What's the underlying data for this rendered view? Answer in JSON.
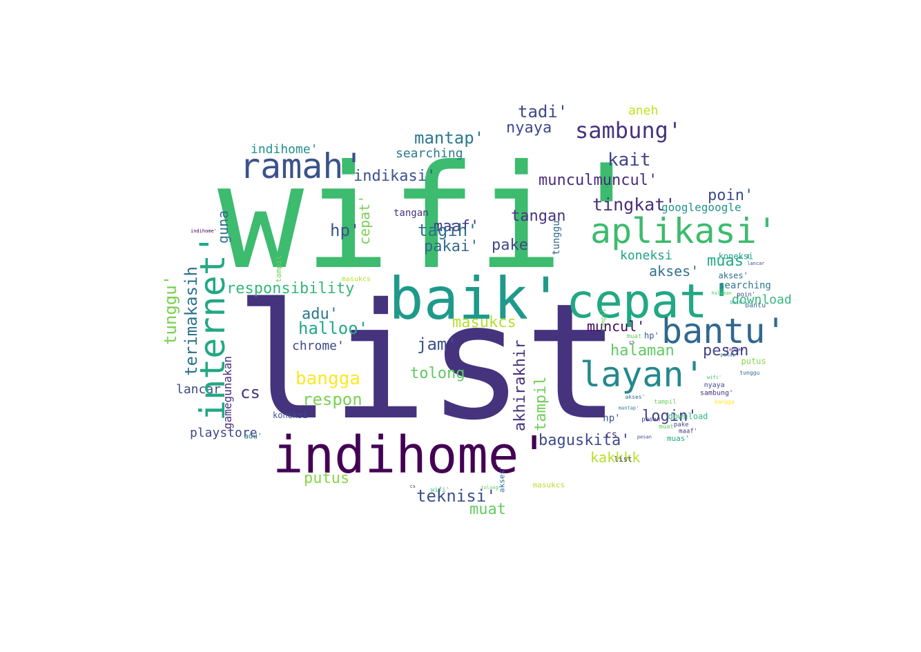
{
  "words": [
    {
      "text": "wifi'",
      "color": "#3dbb6e"
    },
    {
      "text": "list",
      "color": "#46337e"
    },
    {
      "text": "indihome'",
      "color": "#440154"
    },
    {
      "text": "baik'",
      "color": "#1f9a8a"
    },
    {
      "text": "cepat'",
      "color": "#22a884"
    },
    {
      "text": "aplikasi'",
      "color": "#3dbb6e"
    },
    {
      "text": "bantu'",
      "color": "#31688e"
    },
    {
      "text": "layan'",
      "color": "#23898e"
    },
    {
      "text": "ramah'",
      "color": "#3b528b"
    },
    {
      "text": "internet'",
      "color": "#22a884"
    },
    {
      "text": "sambung'",
      "color": "#46337e"
    },
    {
      "text": "tingkat'",
      "color": "#472d7b"
    },
    {
      "text": "terimakasih",
      "color": "#2c728e"
    },
    {
      "text": "responsibility",
      "color": "#35b779"
    },
    {
      "text": "tunggu'",
      "color": "#7ad151"
    },
    {
      "text": "mantap'",
      "color": "#2a788e"
    },
    {
      "text": "indikasi'",
      "color": "#3b528b"
    },
    {
      "text": "munculmuncul'",
      "color": "#472c7a"
    },
    {
      "text": "tadi'",
      "color": "#3e4989"
    },
    {
      "text": "kait",
      "color": "#414487"
    },
    {
      "text": "hp'",
      "color": "#3b528b"
    },
    {
      "text": "maaf'",
      "color": "#443983"
    },
    {
      "text": "tagih'",
      "color": "#2c728e"
    },
    {
      "text": "pakai'",
      "color": "#31688e"
    },
    {
      "text": "pake",
      "color": "#3f4788"
    },
    {
      "text": "tangan",
      "color": "#46337e"
    },
    {
      "text": "googlegoogle",
      "color": "#21918c"
    },
    {
      "text": "koneksi",
      "color": "#20a486"
    },
    {
      "text": "muas'",
      "color": "#22a884"
    },
    {
      "text": "akses'",
      "color": "#2e6f8e"
    },
    {
      "text": "poin'",
      "color": "#3e4a89"
    },
    {
      "text": "muncul'",
      "color": "#46085c"
    },
    {
      "text": "masukcs",
      "color": "#b5de2b"
    },
    {
      "text": "halloo'",
      "color": "#22a884"
    },
    {
      "text": "adu'",
      "color": "#2a788e"
    },
    {
      "text": "jam'",
      "color": "#3b528b"
    },
    {
      "text": "chrome'",
      "color": "#3e4989"
    },
    {
      "text": "bangga",
      "color": "#fde725"
    },
    {
      "text": "respon",
      "color": "#7ad151"
    },
    {
      "text": "tolong",
      "color": "#5ec962"
    },
    {
      "text": "halaman",
      "color": "#5ec962"
    },
    {
      "text": "pesan",
      "color": "#414487"
    },
    {
      "text": "login'",
      "color": "#424086"
    },
    {
      "text": "baguskita'",
      "color": "#3e4989"
    },
    {
      "text": "kakkkk",
      "color": "#b8de29"
    },
    {
      "text": "teknisi'",
      "color": "#3b528b"
    },
    {
      "text": "muat",
      "color": "#63cb5f"
    },
    {
      "text": "putus",
      "color": "#86d549"
    },
    {
      "text": "playstore",
      "color": "#404688"
    },
    {
      "text": "searching",
      "color": "#2a788e"
    },
    {
      "text": "download",
      "color": "#35b779"
    },
    {
      "text": "akhirakhir",
      "color": "#46327e"
    },
    {
      "text": "tampil",
      "color": "#6ece58"
    },
    {
      "text": "nyaya",
      "color": "#3e4989"
    },
    {
      "text": "cs",
      "color": "#46327e"
    },
    {
      "text": "guna",
      "color": "#2e6e8e"
    },
    {
      "text": "lancar",
      "color": "#3e4989"
    },
    {
      "text": "gamegunakan",
      "color": "#472d7b"
    },
    {
      "text": "aneh",
      "color": "#c2df23"
    },
    {
      "text": "tunggu",
      "color": "#31688e"
    }
  ]
}
